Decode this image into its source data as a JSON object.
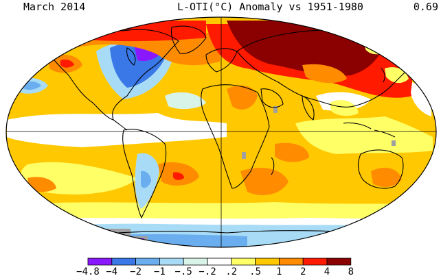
{
  "header": {
    "period": "March 2014",
    "title": "L-OTI(°C) Anomaly vs 1951-1980",
    "global_mean": "0.69"
  },
  "legend": {
    "bins": [
      {
        "label": "-4.8",
        "color": "#8a18ff"
      },
      {
        "label": "-4",
        "color": "#3a78e8"
      },
      {
        "label": "-2",
        "color": "#6aaef0"
      },
      {
        "label": "-1",
        "color": "#a8dcf6"
      },
      {
        "label": "-.5",
        "color": "#d8f4e8"
      },
      {
        "label": "-.2",
        "color": "#ffffff"
      },
      {
        "label": ".2",
        "color": "#ffff66"
      },
      {
        "label": ".5",
        "color": "#ffc800"
      },
      {
        "label": "1",
        "color": "#ff8c00"
      },
      {
        "label": "2",
        "color": "#ff1a00"
      },
      {
        "label": "4",
        "color": "#8b0000"
      }
    ],
    "last_label": "8"
  },
  "map": {
    "projection": "robinson",
    "ocean_base_color": "#ffc800",
    "missing_color": "#a0a0a0",
    "graticule": "equator-and-prime-meridian"
  }
}
